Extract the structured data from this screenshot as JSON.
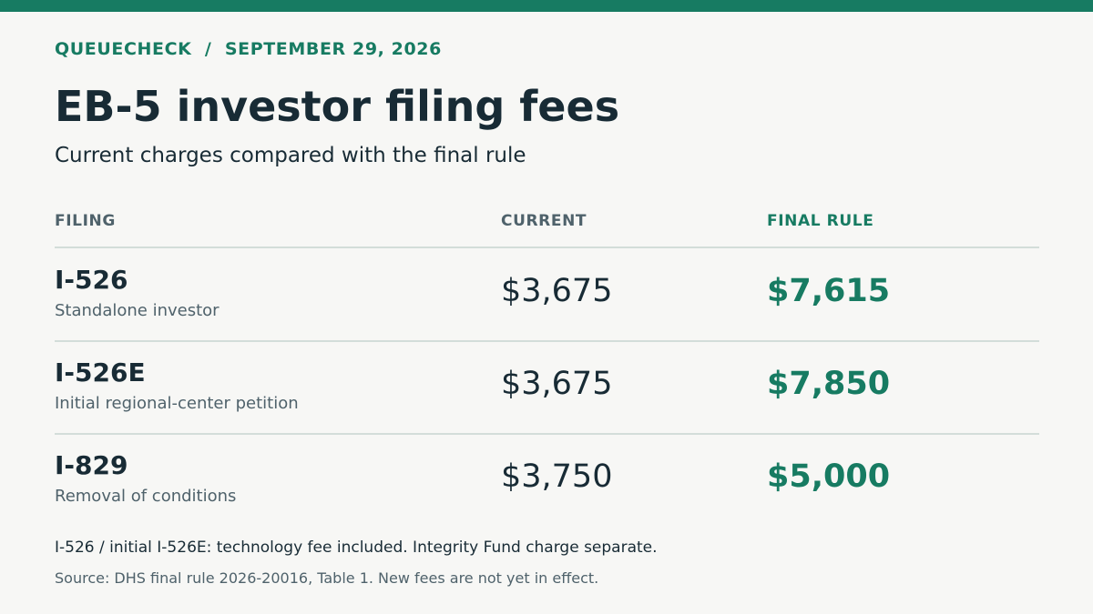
{
  "header": {
    "kicker": "QUEUECHECK  /  SEPTEMBER 29, 2026",
    "title": "EB-5 investor filing fees",
    "subtitle": "Current charges compared with the final rule"
  },
  "table": {
    "columns": {
      "filing": "FILING",
      "current": "CURRENT",
      "final_rule": "FINAL RULE"
    },
    "rows": [
      {
        "code": "I-526",
        "description": "Standalone investor",
        "current": "$3,675",
        "final_rule": "$7,615"
      },
      {
        "code": "I-526E",
        "description": "Initial regional-center petition",
        "current": "$3,675",
        "final_rule": "$7,850"
      },
      {
        "code": "I-829",
        "description": "Removal of conditions",
        "current": "$3,750",
        "final_rule": "$5,000"
      }
    ]
  },
  "footer": {
    "note": "I-526 / initial I-526E: technology fee included. Integrity Fund charge separate.",
    "source": "Source: DHS final rule 2026-20016, Table 1. New fees are not yet in effect."
  },
  "colors": {
    "accent": "#177b62",
    "text": "#182b35",
    "muted": "#4f626b",
    "background": "#f7f7f5",
    "divider": "#d3ddd9"
  }
}
